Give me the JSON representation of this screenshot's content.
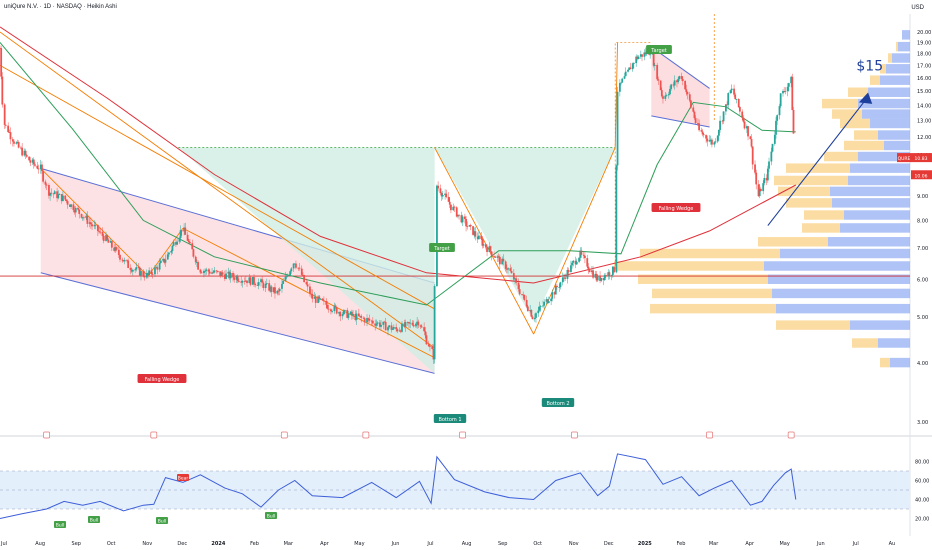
{
  "header": {
    "title": "uniQure N.V. · 1D · NASDAQ · Heikin Ashi",
    "currency": "USD"
  },
  "colors": {
    "up": "#26a69a",
    "down": "#ef5350",
    "wedge_fill": "#fbd6d9",
    "wedge_line": "#5b6fd6",
    "target_fill": "#cfeee4",
    "trendline": "#f57c00",
    "ma_green": "#2e9e5a",
    "ma_red": "#e0303a",
    "rsi_line": "#3d5ed8",
    "rsi_band": "#e3effb",
    "vp_blue": "#7a9bf2",
    "vp_yellow": "#f9c765",
    "support": "#d32f2f",
    "arrow": "#1e3f9c"
  },
  "chart_data": [
    {
      "type": "candlestick",
      "title": "uniQure N.V. · 1D · NASDAQ · Heikin Ashi",
      "ylabel": "USD",
      "scale": "log",
      "ylim": [
        3.0,
        20.0
      ],
      "y_ticks": [
        "20.00",
        "19.00",
        "18.00",
        "17.00",
        "16.00",
        "15.00",
        "14.00",
        "13.00",
        "12.00",
        "11.00",
        "10.00",
        "9.00",
        "8.00",
        "7.00",
        "6.00",
        "5.00",
        "4.00",
        "3.00"
      ],
      "x_ticks": [
        "Jul",
        "Aug",
        "Sep",
        "Oct",
        "Nov",
        "Dec",
        "2024",
        "Feb",
        "Mar",
        "Apr",
        "May",
        "Jun",
        "Jul",
        "Aug",
        "Sep",
        "Oct",
        "Nov",
        "Dec",
        "2025",
        "Feb",
        "Mar",
        "Apr",
        "May",
        "Jun",
        "Jul",
        "Au"
      ],
      "price_path": [
        [
          "2023-07-01",
          18.5
        ],
        [
          "2023-07-05",
          12.8
        ],
        [
          "2023-07-15",
          11.6
        ],
        [
          "2023-07-28",
          10.6
        ],
        [
          "2023-08-05",
          10.3
        ],
        [
          "2023-08-12",
          9.2
        ],
        [
          "2023-08-25",
          8.9
        ],
        [
          "2023-09-10",
          8.2
        ],
        [
          "2023-09-28",
          7.4
        ],
        [
          "2023-10-20",
          6.4
        ],
        [
          "2023-11-05",
          6.1
        ],
        [
          "2023-11-20",
          6.6
        ],
        [
          "2023-12-05",
          7.7
        ],
        [
          "2023-12-20",
          6.3
        ],
        [
          "2024-01-15",
          6.1
        ],
        [
          "2024-02-10",
          5.9
        ],
        [
          "2024-02-25",
          5.6
        ],
        [
          "2024-03-10",
          6.6
        ],
        [
          "2024-03-25",
          5.5
        ],
        [
          "2024-04-20",
          5.1
        ],
        [
          "2024-05-15",
          4.9
        ],
        [
          "2024-06-05",
          4.7
        ],
        [
          "2024-06-25",
          4.9
        ],
        [
          "2024-07-08",
          4.1
        ],
        [
          "2024-07-10",
          9.5
        ],
        [
          "2024-07-25",
          8.4
        ],
        [
          "2024-08-20",
          7.1
        ],
        [
          "2024-09-10",
          6.3
        ],
        [
          "2024-10-01",
          5.0
        ],
        [
          "2024-10-20",
          5.7
        ],
        [
          "2024-11-10",
          6.8
        ],
        [
          "2024-11-25",
          6.0
        ],
        [
          "2024-12-10",
          6.3
        ],
        [
          "2024-12-12",
          15.0
        ],
        [
          "2024-12-28",
          17.6
        ],
        [
          "2025-01-10",
          18.3
        ],
        [
          "2025-01-20",
          14.5
        ],
        [
          "2025-02-05",
          16.2
        ],
        [
          "2025-02-20",
          12.4
        ],
        [
          "2025-03-05",
          11.6
        ],
        [
          "2025-03-20",
          15.2
        ],
        [
          "2025-04-05",
          12.0
        ],
        [
          "2025-04-12",
          9.0
        ],
        [
          "2025-04-20",
          10.0
        ],
        [
          "2025-05-01",
          14.6
        ],
        [
          "2025-05-10",
          15.8
        ],
        [
          "2025-05-14",
          10.9
        ]
      ],
      "moving_averages": [
        {
          "color": "#2e9e5a",
          "values": [
            [
              "2023-07-01",
              19.0
            ],
            [
              "2023-09-01",
              12.5
            ],
            [
              "2023-11-01",
              8.0
            ],
            [
              "2024-01-01",
              6.7
            ],
            [
              "2024-04-01",
              5.9
            ],
            [
              "2024-07-01",
              5.3
            ],
            [
              "2024-09-01",
              6.9
            ],
            [
              "2024-11-01",
              6.9
            ],
            [
              "2024-12-15",
              6.8
            ],
            [
              "2025-01-15",
              10.5
            ],
            [
              "2025-02-15",
              14.2
            ],
            [
              "2025-03-15",
              13.9
            ],
            [
              "2025-04-15",
              12.4
            ],
            [
              "2025-05-14",
              12.3
            ]
          ]
        },
        {
          "color": "#e0303a",
          "values": [
            [
              "2023-07-01",
              20.5
            ],
            [
              "2023-10-01",
              14.5
            ],
            [
              "2024-01-01",
              10.0
            ],
            [
              "2024-04-01",
              7.4
            ],
            [
              "2024-07-01",
              6.2
            ],
            [
              "2024-10-01",
              5.9
            ],
            [
              "2025-01-01",
              6.7
            ],
            [
              "2025-03-01",
              7.6
            ],
            [
              "2025-05-14",
              9.5
            ]
          ]
        }
      ],
      "last_price": "10.83",
      "ticker_badge": "QURE",
      "ma_badge": "10.06",
      "support_level": 6.1,
      "annotations": [
        "Falling Wedge",
        "Falling Wedge",
        "Target",
        "Target",
        "Bottom 1",
        "Bottom 2",
        "$15"
      ]
    },
    {
      "type": "line",
      "title": "RSI",
      "ylim": [
        10,
        90
      ],
      "y_ticks": [
        "80.00",
        "60.00",
        "40.00",
        "20.00"
      ],
      "band": [
        30,
        70
      ],
      "values": [
        [
          "2023-07-01",
          20
        ],
        [
          "2023-07-20",
          25
        ],
        [
          "2023-08-10",
          30
        ],
        [
          "2023-08-25",
          38
        ],
        [
          "2023-09-10",
          34
        ],
        [
          "2023-09-25",
          38
        ],
        [
          "2023-10-15",
          28
        ],
        [
          "2023-11-01",
          34
        ],
        [
          "2023-11-10",
          35
        ],
        [
          "2023-11-20",
          63
        ],
        [
          "2023-12-05",
          58
        ],
        [
          "2023-12-20",
          66
        ],
        [
          "2024-01-10",
          52
        ],
        [
          "2024-01-25",
          46
        ],
        [
          "2024-02-10",
          32
        ],
        [
          "2024-02-25",
          50
        ],
        [
          "2024-03-10",
          60
        ],
        [
          "2024-03-25",
          44
        ],
        [
          "2024-04-20",
          42
        ],
        [
          "2024-05-15",
          58
        ],
        [
          "2024-06-05",
          42
        ],
        [
          "2024-06-25",
          59
        ],
        [
          "2024-07-05",
          36
        ],
        [
          "2024-07-10",
          85
        ],
        [
          "2024-07-25",
          61
        ],
        [
          "2024-08-20",
          48
        ],
        [
          "2024-09-10",
          42
        ],
        [
          "2024-10-01",
          40
        ],
        [
          "2024-10-20",
          60
        ],
        [
          "2024-11-10",
          68
        ],
        [
          "2024-11-25",
          44
        ],
        [
          "2024-12-05",
          54
        ],
        [
          "2024-12-12",
          88
        ],
        [
          "2025-01-05",
          82
        ],
        [
          "2025-01-20",
          56
        ],
        [
          "2025-02-05",
          64
        ],
        [
          "2025-02-20",
          44
        ],
        [
          "2025-03-05",
          52
        ],
        [
          "2025-03-20",
          60
        ],
        [
          "2025-04-05",
          34
        ],
        [
          "2025-04-15",
          38
        ],
        [
          "2025-04-25",
          55
        ],
        [
          "2025-05-05",
          68
        ],
        [
          "2025-05-10",
          72
        ],
        [
          "2025-05-14",
          40
        ]
      ],
      "annotations": [
        "Bull",
        "Bull",
        "Bull",
        "Bear",
        "Bull"
      ]
    }
  ]
}
